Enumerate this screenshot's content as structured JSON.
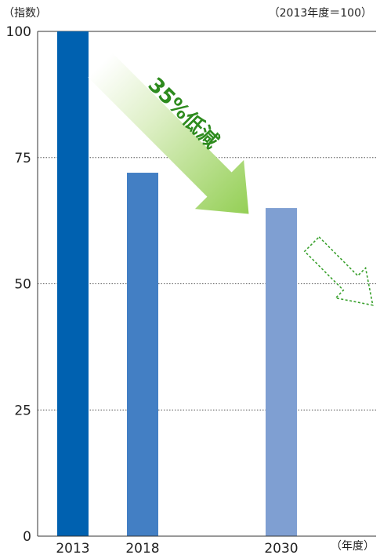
{
  "y_unit_label": "（指数）",
  "base_note": "（2013年度＝100）",
  "x_unit_label": "（年度）",
  "chart_data": {
    "type": "bar",
    "categories": [
      "2013",
      "2018",
      "2030"
    ],
    "values": [
      100,
      72,
      65
    ],
    "ylim": [
      0,
      100
    ],
    "yticks": [
      0,
      25,
      50,
      75,
      100
    ],
    "grid": "dotted horizontal",
    "bar_colors": [
      "#0061b0",
      "#437fc4",
      "#7f9fd2"
    ],
    "annotation": "35%低減",
    "annotation_color": "#2e8b1e"
  }
}
